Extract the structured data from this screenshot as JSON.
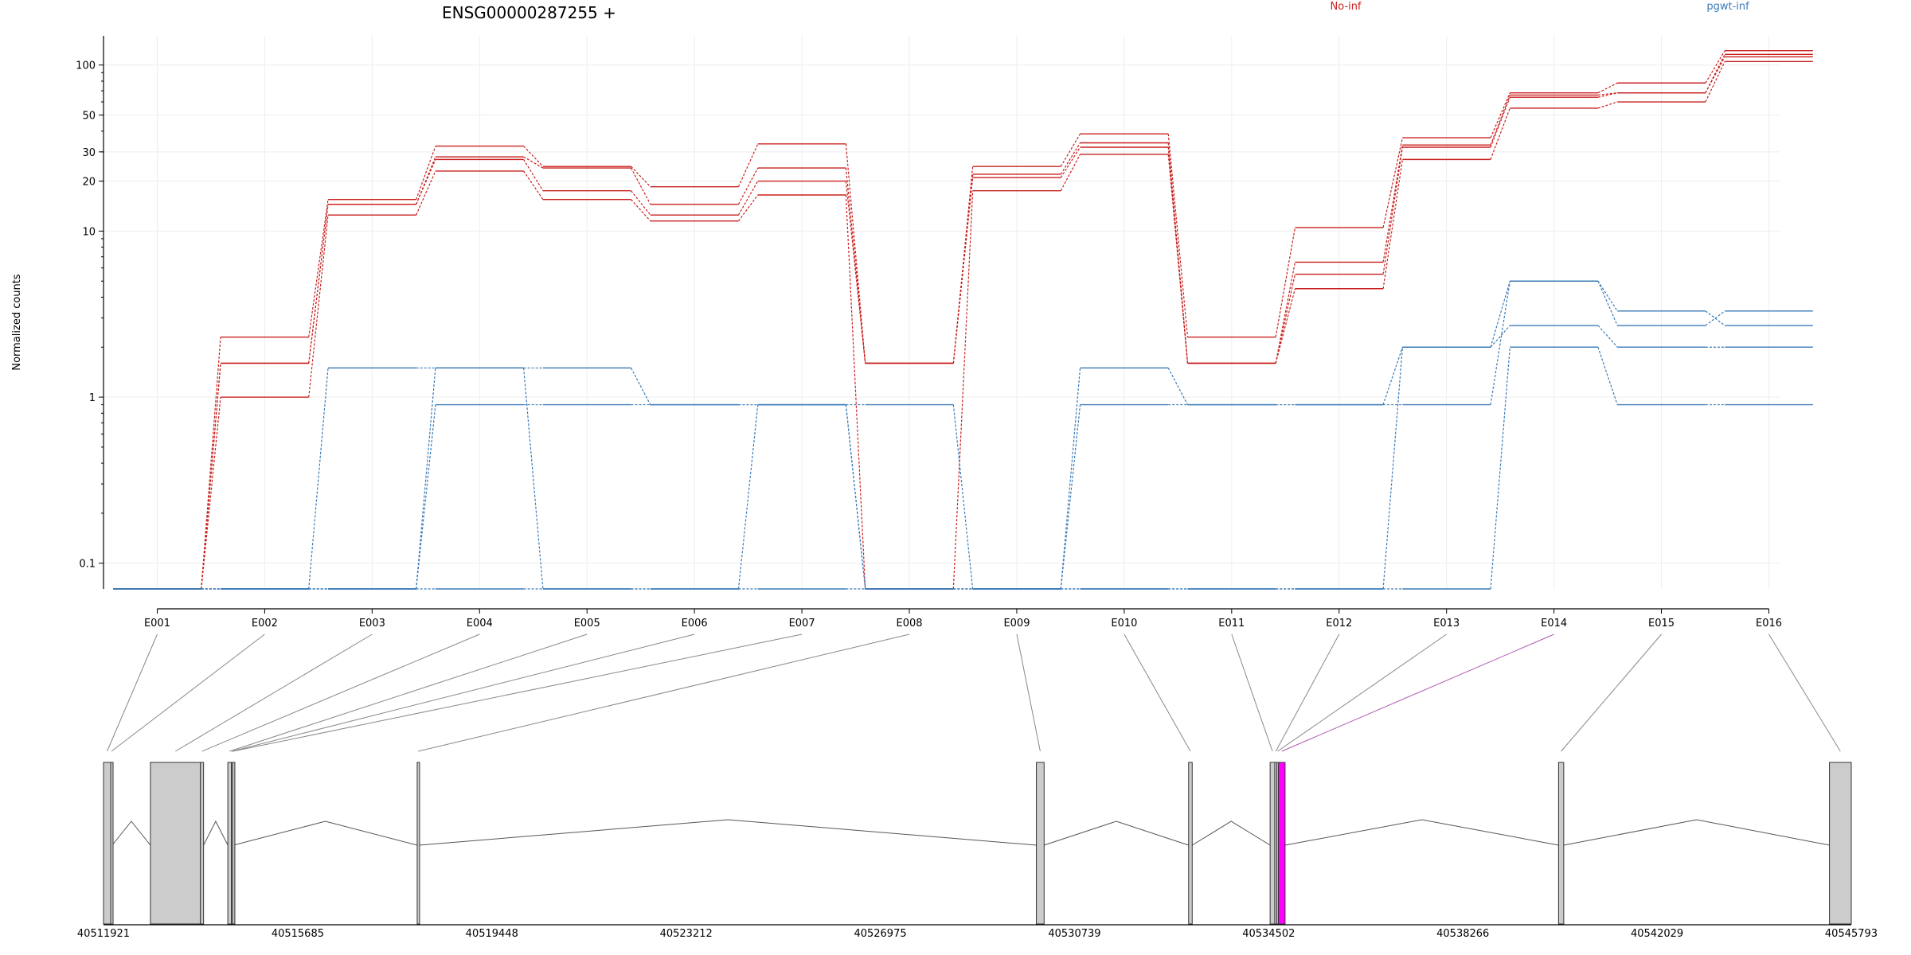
{
  "chart_data": {
    "type": "line",
    "title": "ENSG00000287255 +",
    "ylabel": "Normalized counts",
    "xlabel": "",
    "y_scale": "log",
    "y_ticks": [
      0.1,
      1,
      10,
      20,
      30,
      50,
      100
    ],
    "y_tick_labels": [
      "0.1",
      "1",
      "10",
      "20",
      "30",
      "50",
      "100"
    ],
    "ylim": [
      0.07,
      150
    ],
    "grid": true,
    "legend": {
      "placement": "top-right"
    },
    "categories": [
      "E001",
      "E002",
      "E003",
      "E004",
      "E005",
      "E006",
      "E007",
      "E008",
      "E009",
      "E010",
      "E011",
      "E012",
      "E013",
      "E014",
      "E015",
      "E016"
    ],
    "series": [
      {
        "name": "No-inf",
        "color": "#c8201e",
        "lines": [
          [
            0.07,
            2.3,
            15.5,
            32.5,
            24.5,
            18.5,
            33.5,
            1.6,
            24.5,
            38.5,
            2.3,
            10.5,
            36.5,
            68,
            78,
            122
          ],
          [
            0.07,
            1.6,
            14.5,
            28,
            24,
            14.5,
            24,
            1.6,
            22,
            34,
            1.6,
            6.5,
            33,
            66,
            68,
            116
          ],
          [
            0.07,
            1.6,
            14.5,
            27,
            17.5,
            12.5,
            20,
            1.6,
            21,
            32,
            1.6,
            5.5,
            32,
            64,
            68,
            112
          ],
          [
            0.07,
            1.0,
            12.5,
            23,
            15.5,
            11.5,
            16.5,
            0.07,
            17.5,
            29,
            1.6,
            4.5,
            27,
            55,
            60,
            105
          ]
        ]
      },
      {
        "name": "pgwt-inf",
        "color": "#3a7ab6",
        "lines": [
          [
            0.07,
            0.07,
            1.5,
            1.5,
            1.5,
            0.9,
            0.9,
            0.9,
            0.07,
            1.5,
            0.9,
            0.9,
            2.0,
            5.0,
            2.7,
            3.3
          ],
          [
            0.07,
            0.07,
            0.07,
            0.9,
            0.9,
            0.9,
            0.9,
            0.07,
            0.07,
            0.9,
            0.9,
            0.9,
            0.9,
            5.0,
            3.3,
            2.7
          ],
          [
            0.07,
            0.07,
            0.07,
            1.5,
            0.07,
            0.07,
            0.9,
            0.07,
            0.07,
            0.07,
            0.07,
            0.07,
            2.0,
            2.7,
            2.0,
            2.0
          ],
          [
            0.07,
            0.07,
            0.07,
            0.07,
            0.07,
            0.07,
            0.07,
            0.07,
            0.07,
            0.07,
            0.07,
            0.07,
            0.07,
            2.0,
            0.9,
            0.9
          ]
        ]
      }
    ],
    "gene_model": {
      "genomic_range": [
        40511921,
        40545793
      ],
      "position_ticks": [
        40511921,
        40515685,
        40519448,
        40523212,
        40526975,
        40530739,
        40534502,
        40538266,
        40542029,
        40545793
      ],
      "exons": [
        {
          "id": "E001",
          "start": 40511921,
          "end": 40512060
        },
        {
          "id": "E002",
          "start": 40512060,
          "end": 40512090
        },
        {
          "id": "E003",
          "start": 40512830,
          "end": 40513800
        },
        {
          "id": "E004",
          "start": 40513800,
          "end": 40513860
        },
        {
          "id": "E005",
          "start": 40514330,
          "end": 40514400
        },
        {
          "id": "E006",
          "start": 40514400,
          "end": 40514420
        },
        {
          "id": "E007",
          "start": 40514420,
          "end": 40514440
        },
        {
          "id": "E008",
          "start": 40518000,
          "end": 40518040
        },
        {
          "id": "E009",
          "start": 40530000,
          "end": 40530150
        },
        {
          "id": "E010",
          "start": 40532950,
          "end": 40533020
        },
        {
          "id": "E011",
          "start": 40534530,
          "end": 40534620
        },
        {
          "id": "E012",
          "start": 40534620,
          "end": 40534660
        },
        {
          "id": "E013",
          "start": 40534660,
          "end": 40534690
        },
        {
          "id": "E014",
          "start": 40534690,
          "end": 40534820,
          "highlight": true
        },
        {
          "id": "E015",
          "start": 40540120,
          "end": 40540220
        },
        {
          "id": "E016",
          "start": 40545370,
          "end": 40545793
        }
      ],
      "exon_color": "#cccccc",
      "highlight_color": "#ff00ff"
    }
  }
}
